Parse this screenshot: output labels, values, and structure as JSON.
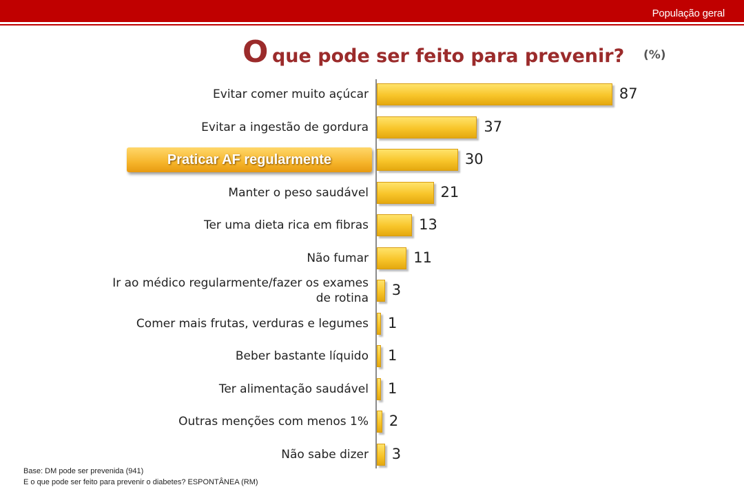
{
  "header": {
    "label": "População geral"
  },
  "title": {
    "big": "O",
    "rest": "que pode ser feito para prevenir?"
  },
  "unit": "(%)",
  "highlight_label": "Praticar AF regularmente",
  "chart_data": {
    "type": "bar",
    "orientation": "horizontal",
    "title": "O que pode ser feito para prevenir?",
    "unit": "(%)",
    "xlim": [
      0,
      100
    ],
    "categories": [
      [
        "Evitar comer muito açúcar"
      ],
      [
        "Evitar a ingestão de gordura"
      ],
      [
        "Praticar AF regularmente"
      ],
      [
        "Manter o peso saudável"
      ],
      [
        "Ter uma dieta rica em fibras"
      ],
      [
        "Não fumar"
      ],
      [
        "Ir ao médico regularmente/fazer os exames",
        "de rotina"
      ],
      [
        "Comer mais frutas, verduras e legumes"
      ],
      [
        "Beber bastante líquido"
      ],
      [
        "Ter alimentação saudável"
      ],
      [
        "Outras menções com menos 1%"
      ],
      [
        "Não sabe dizer"
      ]
    ],
    "values": [
      87,
      37,
      30,
      21,
      13,
      11,
      3,
      1,
      1,
      1,
      2,
      3
    ],
    "highlighted_index": 2
  },
  "footnotes": [
    "Base: DM pode ser prevenida (941)",
    "E o que pode ser feito para prevenir o diabetes? ESPONTÂNEA (RM)"
  ],
  "colors": {
    "bar": "#f8c52a",
    "header": "#c00000",
    "title": "#9b2b2b"
  }
}
